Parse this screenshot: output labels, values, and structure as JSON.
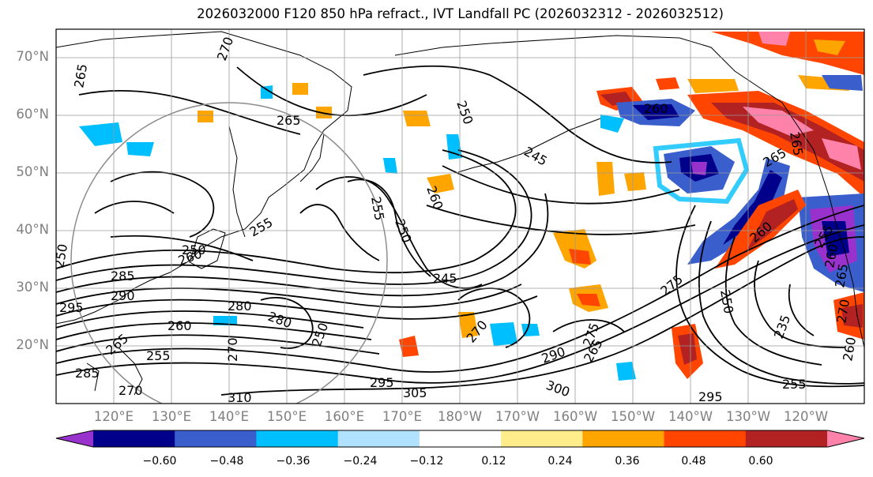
{
  "title": "2026032000 F120 850 hPa refract., IVT Landfall PC (2026032312 - 2026032512)",
  "lat_labels": [
    "70°N",
    "60°N",
    "50°N",
    "40°N",
    "30°N",
    "20°N"
  ],
  "lon_labels": [
    "120°E",
    "130°E",
    "140°E",
    "150°E",
    "160°E",
    "170°E",
    "180°W",
    "170°W",
    "160°W",
    "150°W",
    "140°W",
    "130°W",
    "120°W"
  ],
  "colorbar": {
    "ticks": [
      "−0.60",
      "−0.48",
      "−0.36",
      "−0.24",
      "−0.12",
      "0.12",
      "0.24",
      "0.36",
      "0.48",
      "0.60"
    ],
    "colors": [
      "#9932cc",
      "#00008b",
      "#3a5fcd",
      "#00bfff",
      "#b0e2ff",
      "#ffffff",
      "#ffec8b",
      "#ffa500",
      "#ff4500",
      "#b22222",
      "#ff82ab"
    ]
  },
  "contour_labels": [
    "265",
    "270",
    "265",
    "250",
    "245",
    "260",
    "265",
    "255",
    "260",
    "250",
    "250",
    "255",
    "250",
    "260",
    "245",
    "265",
    "255",
    "290",
    "285",
    "295",
    "280",
    "280",
    "270",
    "260",
    "265",
    "255",
    "250",
    "270",
    "275",
    "285",
    "270",
    "310",
    "295",
    "305",
    "290",
    "300",
    "265",
    "275",
    "260",
    "250",
    "235",
    "295",
    "255",
    "260",
    "265",
    "270",
    "260"
  ]
}
